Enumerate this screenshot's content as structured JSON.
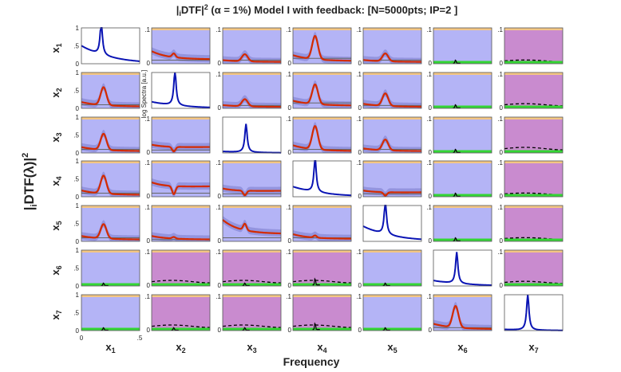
{
  "chart_data": {
    "type": "line",
    "title_prefix": "|",
    "title_sub": "i",
    "title_mid": "DTF|",
    "title_sup": "2",
    "title_suffix": " (α = 1%) Model I with feedback: [N=5000pts; IP=2 ]",
    "ylabel_main": "|iDTF(λ)|²",
    "ylabel_main_left": "|",
    "ylabel_main_sub": "i",
    "ylabel_main_right": "DTF(λ)|",
    "ylabel_main_sup": "2",
    "xlabel_main": "Frequency",
    "variables": [
      "x1",
      "x2",
      "x3",
      "x4",
      "x5",
      "x6",
      "x7"
    ],
    "row_labels": [
      {
        "base": "x",
        "sub": "1"
      },
      {
        "base": "x",
        "sub": "2"
      },
      {
        "base": "x",
        "sub": "3"
      },
      {
        "base": "x",
        "sub": "4"
      },
      {
        "base": "x",
        "sub": "5"
      },
      {
        "base": "x",
        "sub": "6"
      },
      {
        "base": "x",
        "sub": "7"
      }
    ],
    "col_labels": [
      {
        "base": "x",
        "sub": "1"
      },
      {
        "base": "x",
        "sub": "2"
      },
      {
        "base": "x",
        "sub": "3"
      },
      {
        "base": "x",
        "sub": "4"
      },
      {
        "base": "x",
        "sub": "5"
      },
      {
        "base": "x",
        "sub": "6"
      },
      {
        "base": "x",
        "sub": "7"
      }
    ],
    "yticks": [
      "0",
      ".1"
    ],
    "yticks_first_col": [
      "0",
      ".5",
      "1"
    ],
    "xticks": [
      "0",
      ".5"
    ],
    "xlim": [
      0,
      0.5
    ],
    "diag_ylim": [
      0,
      1
    ],
    "offdiag_ylim": [
      0,
      0.1
    ],
    "log_spectra_label": "log Spectra [a.u.]",
    "colors": {
      "spectrum": "#0a14b4",
      "significant": "#d42a00",
      "threshold": "#000000",
      "nonsignificant": "#33d633",
      "significant_bg": "#b4b4f6",
      "nonsignificant_bg": "#c98bcf",
      "ci_band": "#8c8cd8",
      "ci_band_ns": "#a77aab",
      "top_band": "#f3c684"
    },
    "diagonal": {
      "x1": {
        "peak_freq": 0.17,
        "peak": 1.0,
        "base": 0.5
      },
      "x2": {
        "peak_freq": 0.2,
        "peak": 1.0,
        "base": 0.18
      },
      "x3": {
        "peak_freq": 0.2,
        "peak": 0.8,
        "base": 0.04
      },
      "x4": {
        "peak_freq": 0.19,
        "peak": 1.0,
        "base": 0.28
      },
      "x5": {
        "peak_freq": 0.19,
        "peak": 1.0,
        "base": 0.42
      },
      "x6": {
        "peak_freq": 0.2,
        "peak": 0.9,
        "base": 0.15
      },
      "x7": {
        "peak_freq": 0.2,
        "peak": 1.0,
        "base": 0.03
      }
    },
    "connections": [
      {
        "row": "x1",
        "col": "x2",
        "status": "significant",
        "shape": "decay",
        "amplitude": 0.035,
        "threshold": 0.01
      },
      {
        "row": "x1",
        "col": "x3",
        "status": "significant",
        "shape": "peak",
        "amplitude": 0.02,
        "threshold": 0.01
      },
      {
        "row": "x1",
        "col": "x4",
        "status": "significant",
        "shape": "peak",
        "amplitude": 0.065,
        "threshold": 0.015
      },
      {
        "row": "x1",
        "col": "x5",
        "status": "significant",
        "shape": "peak",
        "amplitude": 0.022,
        "threshold": 0.01
      },
      {
        "row": "x1",
        "col": "x6",
        "status": "significant_bg_ns",
        "shape": "spike",
        "amplitude": 0.01,
        "threshold": 0.005
      },
      {
        "row": "x1",
        "col": "x7",
        "status": "nonsignificant",
        "shape": "flat",
        "amplitude": 0.004,
        "threshold": 0.008
      },
      {
        "row": "x2",
        "col": "x1",
        "status": "significant",
        "shape": "peak",
        "amplitude": 0.05,
        "threshold": 0.01
      },
      {
        "row": "x2",
        "col": "x3",
        "status": "significant",
        "shape": "peak",
        "amplitude": 0.02,
        "threshold": 0.008
      },
      {
        "row": "x2",
        "col": "x4",
        "status": "significant",
        "shape": "peak",
        "amplitude": 0.055,
        "threshold": 0.015
      },
      {
        "row": "x2",
        "col": "x5",
        "status": "significant",
        "shape": "peak",
        "amplitude": 0.035,
        "threshold": 0.008
      },
      {
        "row": "x2",
        "col": "x6",
        "status": "significant_bg_ns",
        "shape": "spike",
        "amplitude": 0.01,
        "threshold": 0.005
      },
      {
        "row": "x2",
        "col": "x7",
        "status": "nonsignificant",
        "shape": "flat",
        "amplitude": 0.004,
        "threshold": 0.01
      },
      {
        "row": "x3",
        "col": "x1",
        "status": "significant",
        "shape": "peak",
        "amplitude": 0.045,
        "threshold": 0.01
      },
      {
        "row": "x3",
        "col": "x2",
        "status": "significant",
        "shape": "dip",
        "amplitude": 0.02,
        "threshold": 0.008
      },
      {
        "row": "x3",
        "col": "x4",
        "status": "significant",
        "shape": "peak",
        "amplitude": 0.065,
        "threshold": 0.01
      },
      {
        "row": "x3",
        "col": "x5",
        "status": "significant",
        "shape": "peak",
        "amplitude": 0.03,
        "threshold": 0.01
      },
      {
        "row": "x3",
        "col": "x6",
        "status": "significant_bg_ns",
        "shape": "spike",
        "amplitude": 0.01,
        "threshold": 0.005
      },
      {
        "row": "x3",
        "col": "x7",
        "status": "nonsignificant",
        "shape": "flat",
        "amplitude": 0.004,
        "threshold": 0.012
      },
      {
        "row": "x4",
        "col": "x1",
        "status": "significant",
        "shape": "peak",
        "amplitude": 0.05,
        "threshold": 0.01
      },
      {
        "row": "x4",
        "col": "x2",
        "status": "significant",
        "shape": "dip",
        "amplitude": 0.035,
        "threshold": 0.01
      },
      {
        "row": "x4",
        "col": "x3",
        "status": "significant",
        "shape": "dip",
        "amplitude": 0.02,
        "threshold": 0.008
      },
      {
        "row": "x4",
        "col": "x5",
        "status": "significant",
        "shape": "dip",
        "amplitude": 0.015,
        "threshold": 0.008
      },
      {
        "row": "x4",
        "col": "x6",
        "status": "significant_bg_ns",
        "shape": "spike",
        "amplitude": 0.01,
        "threshold": 0.005
      },
      {
        "row": "x4",
        "col": "x7",
        "status": "nonsignificant",
        "shape": "flat",
        "amplitude": 0.004,
        "threshold": 0.008
      },
      {
        "row": "x5",
        "col": "x1",
        "status": "significant",
        "shape": "peak",
        "amplitude": 0.04,
        "threshold": 0.01
      },
      {
        "row": "x5",
        "col": "x2",
        "status": "significant",
        "shape": "decay",
        "amplitude": 0.015,
        "threshold": 0.005
      },
      {
        "row": "x5",
        "col": "x3",
        "status": "significant",
        "shape": "decay",
        "amplitude": 0.06,
        "threshold": 0.01
      },
      {
        "row": "x5",
        "col": "x4",
        "status": "significant",
        "shape": "decay",
        "amplitude": 0.02,
        "threshold": 0.01
      },
      {
        "row": "x5",
        "col": "x6",
        "status": "significant_bg_ns",
        "shape": "spike",
        "amplitude": 0.01,
        "threshold": 0.005
      },
      {
        "row": "x5",
        "col": "x7",
        "status": "nonsignificant",
        "shape": "flat",
        "amplitude": 0.004,
        "threshold": 0.008
      },
      {
        "row": "x6",
        "col": "x1",
        "status": "significant_bg_ns",
        "shape": "spike",
        "amplitude": 0.008,
        "threshold": 0.004
      },
      {
        "row": "x6",
        "col": "x2",
        "status": "nonsignificant",
        "shape": "flat",
        "amplitude": 0.003,
        "threshold": 0.012
      },
      {
        "row": "x6",
        "col": "x3",
        "status": "nonsignificant",
        "shape": "spike",
        "amplitude": 0.008,
        "threshold": 0.012
      },
      {
        "row": "x6",
        "col": "x4",
        "status": "nonsignificant",
        "shape": "spike",
        "amplitude": 0.02,
        "threshold": 0.012
      },
      {
        "row": "x6",
        "col": "x5",
        "status": "significant_bg_ns",
        "shape": "spike",
        "amplitude": 0.008,
        "threshold": 0.004
      },
      {
        "row": "x6",
        "col": "x7",
        "status": "nonsignificant",
        "shape": "flat",
        "amplitude": 0.003,
        "threshold": 0.01
      },
      {
        "row": "x7",
        "col": "x1",
        "status": "significant_bg_ns",
        "shape": "spike",
        "amplitude": 0.008,
        "threshold": 0.004
      },
      {
        "row": "x7",
        "col": "x2",
        "status": "nonsignificant",
        "shape": "spike",
        "amplitude": 0.008,
        "threshold": 0.012
      },
      {
        "row": "x7",
        "col": "x3",
        "status": "nonsignificant",
        "shape": "spike",
        "amplitude": 0.008,
        "threshold": 0.012
      },
      {
        "row": "x7",
        "col": "x4",
        "status": "nonsignificant",
        "shape": "spike",
        "amplitude": 0.02,
        "threshold": 0.012
      },
      {
        "row": "x7",
        "col": "x5",
        "status": "significant_bg_ns",
        "shape": "spike",
        "amplitude": 0.008,
        "threshold": 0.004
      },
      {
        "row": "x7",
        "col": "x6",
        "status": "significant",
        "shape": "peak",
        "amplitude": 0.06,
        "threshold": 0.008
      }
    ],
    "grid": false
  }
}
